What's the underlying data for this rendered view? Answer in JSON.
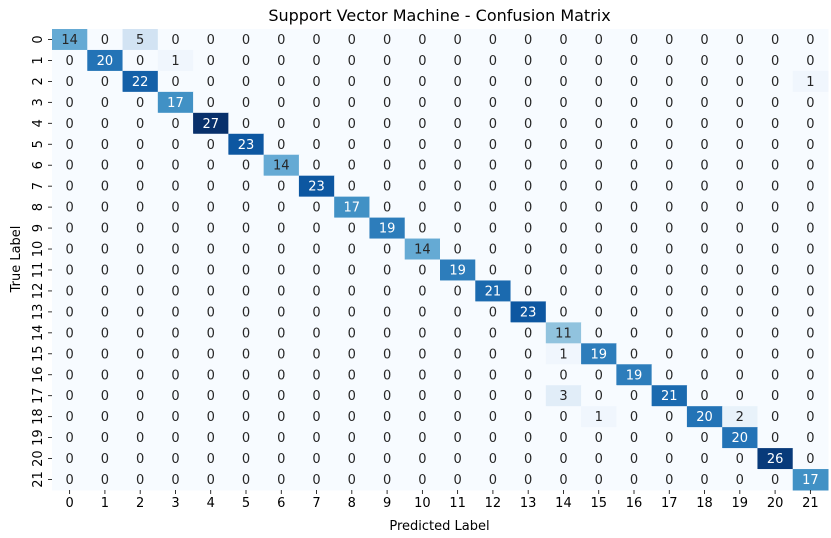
{
  "chart_data": {
    "type": "heatmap",
    "title": "Support Vector Machine - Confusion Matrix",
    "xlabel": "Predicted Label",
    "ylabel": "True Label",
    "x_categories": [
      "0",
      "1",
      "2",
      "3",
      "4",
      "5",
      "6",
      "7",
      "8",
      "9",
      "10",
      "11",
      "12",
      "13",
      "14",
      "15",
      "16",
      "17",
      "18",
      "19",
      "20",
      "21"
    ],
    "y_categories": [
      "0",
      "1",
      "2",
      "3",
      "4",
      "5",
      "6",
      "7",
      "8",
      "9",
      "10",
      "11",
      "12",
      "13",
      "14",
      "15",
      "16",
      "17",
      "18",
      "19",
      "20",
      "21"
    ],
    "colormap": "Blues",
    "value_range": [
      0,
      27
    ],
    "colorbar": false,
    "grid": false,
    "matrix": [
      [
        14,
        0,
        5,
        0,
        0,
        0,
        0,
        0,
        0,
        0,
        0,
        0,
        0,
        0,
        0,
        0,
        0,
        0,
        0,
        0,
        0,
        0
      ],
      [
        0,
        20,
        0,
        1,
        0,
        0,
        0,
        0,
        0,
        0,
        0,
        0,
        0,
        0,
        0,
        0,
        0,
        0,
        0,
        0,
        0,
        0
      ],
      [
        0,
        0,
        22,
        0,
        0,
        0,
        0,
        0,
        0,
        0,
        0,
        0,
        0,
        0,
        0,
        0,
        0,
        0,
        0,
        0,
        0,
        1
      ],
      [
        0,
        0,
        0,
        17,
        0,
        0,
        0,
        0,
        0,
        0,
        0,
        0,
        0,
        0,
        0,
        0,
        0,
        0,
        0,
        0,
        0,
        0
      ],
      [
        0,
        0,
        0,
        0,
        27,
        0,
        0,
        0,
        0,
        0,
        0,
        0,
        0,
        0,
        0,
        0,
        0,
        0,
        0,
        0,
        0,
        0
      ],
      [
        0,
        0,
        0,
        0,
        0,
        23,
        0,
        0,
        0,
        0,
        0,
        0,
        0,
        0,
        0,
        0,
        0,
        0,
        0,
        0,
        0,
        0
      ],
      [
        0,
        0,
        0,
        0,
        0,
        0,
        14,
        0,
        0,
        0,
        0,
        0,
        0,
        0,
        0,
        0,
        0,
        0,
        0,
        0,
        0,
        0
      ],
      [
        0,
        0,
        0,
        0,
        0,
        0,
        0,
        23,
        0,
        0,
        0,
        0,
        0,
        0,
        0,
        0,
        0,
        0,
        0,
        0,
        0,
        0
      ],
      [
        0,
        0,
        0,
        0,
        0,
        0,
        0,
        0,
        17,
        0,
        0,
        0,
        0,
        0,
        0,
        0,
        0,
        0,
        0,
        0,
        0,
        0
      ],
      [
        0,
        0,
        0,
        0,
        0,
        0,
        0,
        0,
        0,
        19,
        0,
        0,
        0,
        0,
        0,
        0,
        0,
        0,
        0,
        0,
        0,
        0
      ],
      [
        0,
        0,
        0,
        0,
        0,
        0,
        0,
        0,
        0,
        0,
        14,
        0,
        0,
        0,
        0,
        0,
        0,
        0,
        0,
        0,
        0,
        0
      ],
      [
        0,
        0,
        0,
        0,
        0,
        0,
        0,
        0,
        0,
        0,
        0,
        19,
        0,
        0,
        0,
        0,
        0,
        0,
        0,
        0,
        0,
        0
      ],
      [
        0,
        0,
        0,
        0,
        0,
        0,
        0,
        0,
        0,
        0,
        0,
        0,
        21,
        0,
        0,
        0,
        0,
        0,
        0,
        0,
        0,
        0
      ],
      [
        0,
        0,
        0,
        0,
        0,
        0,
        0,
        0,
        0,
        0,
        0,
        0,
        0,
        23,
        0,
        0,
        0,
        0,
        0,
        0,
        0,
        0
      ],
      [
        0,
        0,
        0,
        0,
        0,
        0,
        0,
        0,
        0,
        0,
        0,
        0,
        0,
        0,
        11,
        0,
        0,
        0,
        0,
        0,
        0,
        0
      ],
      [
        0,
        0,
        0,
        0,
        0,
        0,
        0,
        0,
        0,
        0,
        0,
        0,
        0,
        0,
        1,
        19,
        0,
        0,
        0,
        0,
        0,
        0
      ],
      [
        0,
        0,
        0,
        0,
        0,
        0,
        0,
        0,
        0,
        0,
        0,
        0,
        0,
        0,
        0,
        0,
        19,
        0,
        0,
        0,
        0,
        0
      ],
      [
        0,
        0,
        0,
        0,
        0,
        0,
        0,
        0,
        0,
        0,
        0,
        0,
        0,
        0,
        3,
        0,
        0,
        21,
        0,
        0,
        0,
        0
      ],
      [
        0,
        0,
        0,
        0,
        0,
        0,
        0,
        0,
        0,
        0,
        0,
        0,
        0,
        0,
        0,
        1,
        0,
        0,
        20,
        2,
        0,
        0
      ],
      [
        0,
        0,
        0,
        0,
        0,
        0,
        0,
        0,
        0,
        0,
        0,
        0,
        0,
        0,
        0,
        0,
        0,
        0,
        0,
        20,
        0,
        0
      ],
      [
        0,
        0,
        0,
        0,
        0,
        0,
        0,
        0,
        0,
        0,
        0,
        0,
        0,
        0,
        0,
        0,
        0,
        0,
        0,
        0,
        26,
        0
      ],
      [
        0,
        0,
        0,
        0,
        0,
        0,
        0,
        0,
        0,
        0,
        0,
        0,
        0,
        0,
        0,
        0,
        0,
        0,
        0,
        0,
        0,
        17
      ]
    ]
  }
}
